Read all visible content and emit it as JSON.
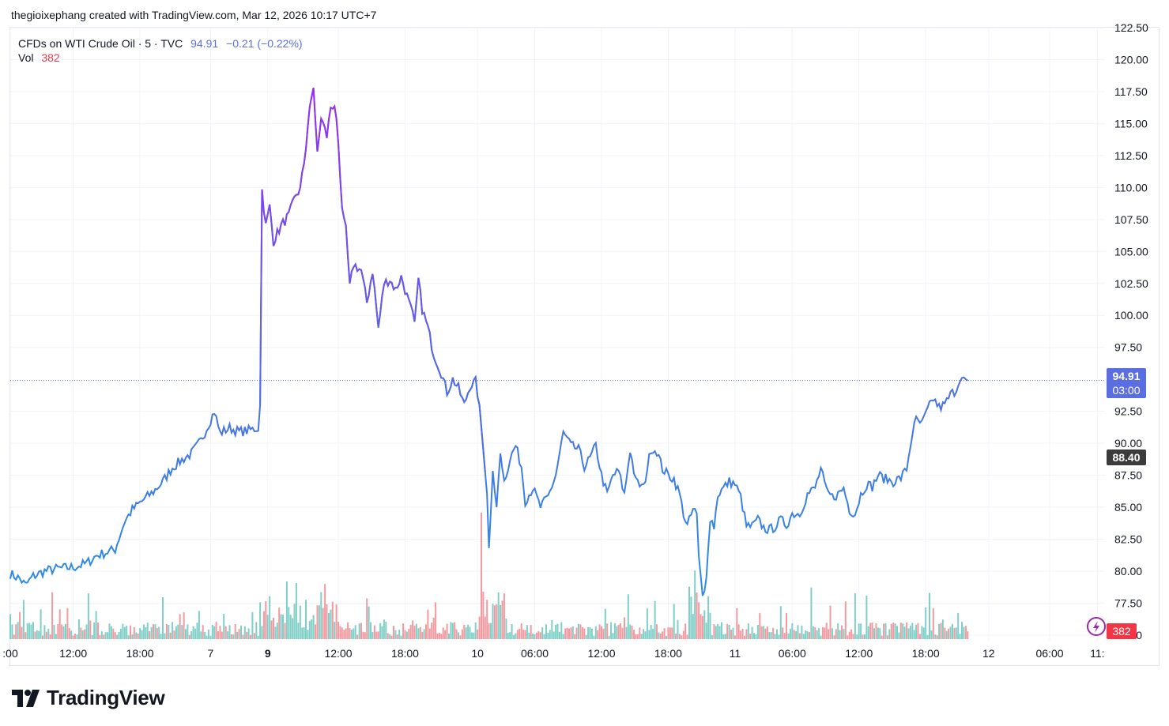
{
  "header": {
    "attribution": "thegioixephang created with TradingView.com, Mar 12, 2026 10:17 UTC+7"
  },
  "legend": {
    "symbol": "CFDs on WTI Crude Oil · 5 · TVC",
    "last": "94.91",
    "change": "−0.21 (−0.22%)",
    "vol_label": "Vol",
    "vol_value": "382"
  },
  "price_labels": {
    "last_price": "94.91",
    "countdown": "03:00",
    "prev_close": "88.40",
    "volume": "382"
  },
  "brand": {
    "name": "TradingView"
  },
  "colors": {
    "line_low": "#2f8ae6",
    "line_high": "#9b2cf0",
    "last_label": "#5b6ee1",
    "prev_close_label": "#3b3b3b",
    "vol_up": "#7fcfc7",
    "vol_down": "#f29aa0",
    "vol_label": "#f23645"
  },
  "chart_data": {
    "type": "line",
    "title": "CFDs on WTI Crude Oil · 5 · TVC",
    "y_ticks": [
      "122.50",
      "120.00",
      "117.50",
      "115.00",
      "112.50",
      "110.00",
      "107.50",
      "105.00",
      "102.50",
      "100.00",
      "97.50",
      "92.50",
      "90.00",
      "87.50",
      "85.00",
      "82.50",
      "80.00",
      "77.50",
      "75.00"
    ],
    "ylim": [
      74.5,
      122.5
    ],
    "x_ticks": [
      ":00",
      "12:00",
      "18:00",
      "7",
      "9",
      "12:00",
      "18:00",
      "10",
      "06:00",
      "12:00",
      "18:00",
      "11",
      "06:00",
      "12:00",
      "18:00",
      "12",
      "06:00",
      "11:"
    ],
    "x_tick_bold": [
      false,
      false,
      false,
      false,
      true,
      false,
      false,
      false,
      false,
      false,
      false,
      false,
      false,
      false,
      false,
      false,
      false,
      false
    ],
    "x_tick_index": [
      0,
      33,
      68,
      105,
      135,
      172,
      207,
      245,
      275,
      310,
      345,
      380,
      410,
      445,
      480,
      513,
      545,
      570
    ],
    "n_points": 575,
    "series_anchors": [
      [
        0,
        79.8
      ],
      [
        5,
        79.4
      ],
      [
        8,
        78.9
      ],
      [
        12,
        79.6
      ],
      [
        18,
        80.0
      ],
      [
        25,
        80.2
      ],
      [
        33,
        80.3
      ],
      [
        40,
        80.6
      ],
      [
        45,
        81.2
      ],
      [
        55,
        81.7
      ],
      [
        60,
        83.9
      ],
      [
        64,
        84.8
      ],
      [
        70,
        85.6
      ],
      [
        75,
        86.2
      ],
      [
        80,
        87.0
      ],
      [
        85,
        88.1
      ],
      [
        90,
        88.7
      ],
      [
        95,
        89.2
      ],
      [
        100,
        90.2
      ],
      [
        104,
        91.5
      ],
      [
        107,
        92.5
      ],
      [
        110,
        90.8
      ],
      [
        115,
        91.2
      ],
      [
        120,
        90.9
      ],
      [
        125,
        91.0
      ],
      [
        130,
        91.2
      ],
      [
        131,
        93.0
      ],
      [
        132,
        109.8
      ],
      [
        134,
        107.0
      ],
      [
        136,
        108.5
      ],
      [
        138,
        105.8
      ],
      [
        142,
        107.0
      ],
      [
        146,
        107.8
      ],
      [
        150,
        109.5
      ],
      [
        152,
        109.8
      ],
      [
        155,
        113.0
      ],
      [
        157,
        116.5
      ],
      [
        159,
        117.8
      ],
      [
        161,
        112.5
      ],
      [
        163,
        115.5
      ],
      [
        166,
        114.0
      ],
      [
        168,
        116.3
      ],
      [
        170,
        116.5
      ],
      [
        172,
        113.5
      ],
      [
        174,
        108.0
      ],
      [
        176,
        107.0
      ],
      [
        178,
        102.2
      ],
      [
        180,
        104.0
      ],
      [
        184,
        103.5
      ],
      [
        187,
        101.0
      ],
      [
        190,
        103.5
      ],
      [
        193,
        99.0
      ],
      [
        196,
        102.5
      ],
      [
        199,
        102.8
      ],
      [
        202,
        102.0
      ],
      [
        205,
        103.0
      ],
      [
        208,
        101.5
      ],
      [
        212,
        99.5
      ],
      [
        214,
        102.8
      ],
      [
        216,
        100.5
      ],
      [
        219,
        99.0
      ],
      [
        222,
        97.0
      ],
      [
        226,
        95.5
      ],
      [
        229,
        94.0
      ],
      [
        232,
        95.0
      ],
      [
        235,
        94.3
      ],
      [
        238,
        93.0
      ],
      [
        241,
        94.5
      ],
      [
        244,
        94.8
      ],
      [
        246,
        93.0
      ],
      [
        248,
        89.5
      ],
      [
        250,
        86.0
      ],
      [
        251,
        81.8
      ],
      [
        253,
        87.5
      ],
      [
        255,
        85.0
      ],
      [
        257,
        89.5
      ],
      [
        259,
        87.0
      ],
      [
        262,
        88.8
      ],
      [
        265,
        89.8
      ],
      [
        268,
        88.2
      ],
      [
        270,
        85.5
      ],
      [
        274,
        86.5
      ],
      [
        278,
        85.0
      ],
      [
        282,
        85.8
      ],
      [
        286,
        87.5
      ],
      [
        290,
        90.8
      ],
      [
        294,
        89.8
      ],
      [
        298,
        89.5
      ],
      [
        301,
        88.2
      ],
      [
        304,
        88.8
      ],
      [
        307,
        89.8
      ],
      [
        310,
        87.5
      ],
      [
        313,
        86.0
      ],
      [
        316,
        87.5
      ],
      [
        319,
        87.8
      ],
      [
        322,
        86.0
      ],
      [
        325,
        89.5
      ],
      [
        328,
        87.0
      ],
      [
        332,
        86.5
      ],
      [
        336,
        89.6
      ],
      [
        339,
        89.4
      ],
      [
        342,
        88.0
      ],
      [
        345,
        87.5
      ],
      [
        348,
        87.2
      ],
      [
        351,
        86.0
      ],
      [
        353,
        84.5
      ],
      [
        355,
        83.5
      ],
      [
        358,
        84.8
      ],
      [
        360,
        84.5
      ],
      [
        361,
        81.0
      ],
      [
        363,
        78.0
      ],
      [
        365,
        79.5
      ],
      [
        367,
        84.2
      ],
      [
        369,
        83.5
      ],
      [
        371,
        86.0
      ],
      [
        374,
        86.5
      ],
      [
        377,
        87.0
      ],
      [
        380,
        86.8
      ],
      [
        383,
        85.8
      ],
      [
        386,
        83.5
      ],
      [
        389,
        83.5
      ],
      [
        392,
        84.0
      ],
      [
        395,
        83.4
      ],
      [
        398,
        83.2
      ],
      [
        401,
        83.5
      ],
      [
        404,
        84.0
      ],
      [
        407,
        83.6
      ],
      [
        410,
        84.5
      ],
      [
        414,
        84.5
      ],
      [
        418,
        86.0
      ],
      [
        422,
        86.5
      ],
      [
        425,
        88.0
      ],
      [
        428,
        86.2
      ],
      [
        431,
        85.8
      ],
      [
        434,
        86.0
      ],
      [
        437,
        86.5
      ],
      [
        440,
        84.8
      ],
      [
        443,
        84.5
      ],
      [
        446,
        86.0
      ],
      [
        449,
        86.8
      ],
      [
        452,
        86.6
      ],
      [
        455,
        87.5
      ],
      [
        459,
        87.2
      ],
      [
        463,
        87.0
      ],
      [
        467,
        87.3
      ],
      [
        470,
        88.0
      ],
      [
        473,
        90.8
      ],
      [
        475,
        91.8
      ],
      [
        478,
        91.5
      ],
      [
        481,
        92.6
      ],
      [
        484,
        93.5
      ],
      [
        487,
        92.8
      ],
      [
        490,
        93.0
      ],
      [
        493,
        93.8
      ],
      [
        496,
        94.2
      ],
      [
        498,
        95.2
      ],
      [
        500,
        94.9
      ],
      [
        502,
        94.9
      ]
    ],
    "volume_note": "Volume histogram bars shown along bottom, last value 382"
  }
}
